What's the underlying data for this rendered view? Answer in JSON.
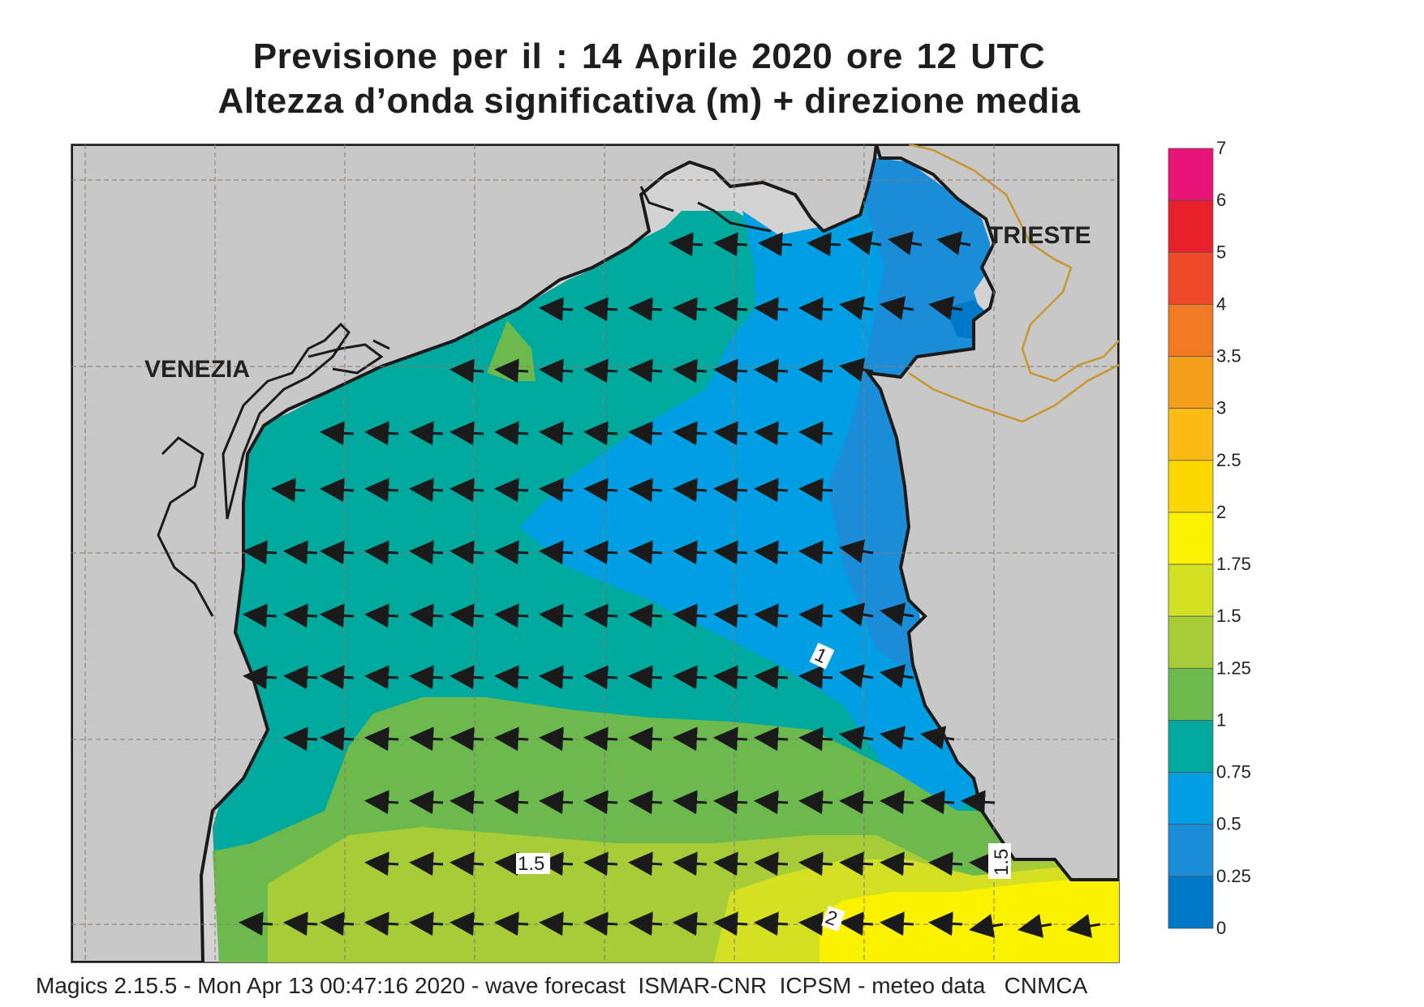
{
  "header": {
    "title_line1": "Previsione per il  :  14   Aprile  2020   ore 12 UTC",
    "title_line2": "Altezza d’onda significativa (m) + direzione media"
  },
  "map": {
    "cities": [
      "VENEZIA",
      "TRIESTE"
    ],
    "contour_labels": [
      "1",
      "1.5",
      "1.5",
      "2"
    ],
    "colors": {
      "land": "#c8c8c8",
      "background": "#d3d3d3",
      "coast": "#1a1a1a",
      "border": "#c8962e",
      "arrow": "#1a1a1a"
    }
  },
  "legend": {
    "labels": [
      "7",
      "6",
      "5",
      "4",
      "3.5",
      "3",
      "2.5",
      "2",
      "1.75",
      "1.5",
      "1.25",
      "1",
      "0.75",
      "0.5",
      "0.25",
      "0"
    ],
    "colors": [
      "#e81478",
      "#e8202a",
      "#ee4a2a",
      "#f07a22",
      "#f59e1c",
      "#fbba14",
      "#fcd700",
      "#fbf200",
      "#d4e024",
      "#a6cc38",
      "#6cba4e",
      "#00a99d",
      "#009fe3",
      "#1a8cd8",
      "#0078c8",
      "#0063b5"
    ]
  },
  "footer": {
    "text": "Magics 2.15.5 - Mon Apr 13 00:47:16 2020 - wave forecast  ISMAR-CNR  ICPSM - meteo data   CNMCA"
  }
}
